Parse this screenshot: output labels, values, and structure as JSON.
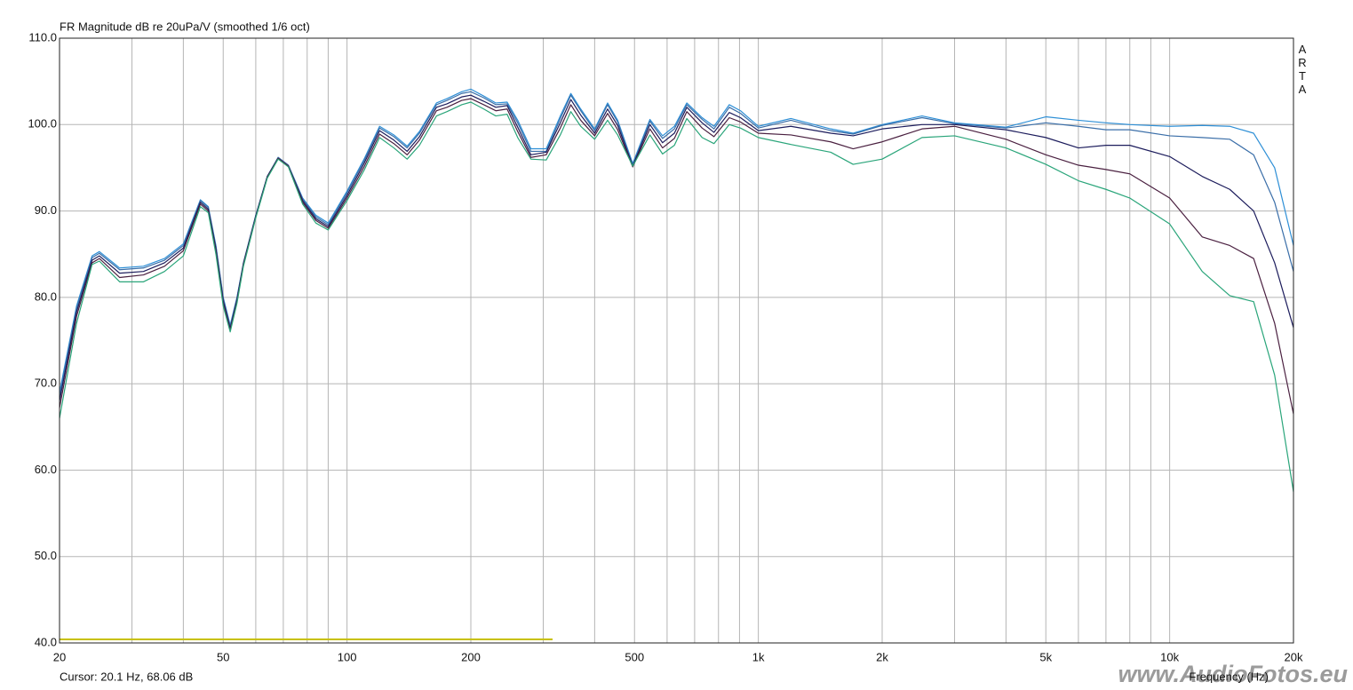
{
  "chart_data": {
    "type": "line",
    "title": "FR Magnitude dB re 20uPa/V (smoothed 1/6 oct)",
    "x_label": "Frequency (Hz)",
    "side_label": "ARTA",
    "cursor_text": "Cursor: 20.1 Hz, 68.06 dB",
    "watermark": "www.AudioFotos.eu",
    "xscale": "log",
    "grid": true,
    "xlim": [
      20,
      20000
    ],
    "ylim": [
      40,
      110
    ],
    "xticks": [
      20,
      50,
      100,
      200,
      500,
      {
        "value": 1000,
        "label": "1k"
      },
      {
        "value": 2000,
        "label": "2k"
      },
      {
        "value": 5000,
        "label": "5k"
      },
      {
        "value": 10000,
        "label": "10k"
      },
      {
        "value": 20000,
        "label": "20k"
      }
    ],
    "x_minor_grid": [
      30,
      40,
      60,
      70,
      80,
      90,
      300,
      400,
      600,
      700,
      800,
      900,
      3000,
      4000,
      6000,
      7000,
      8000,
      9000
    ],
    "yticks": [
      {
        "value": 40,
        "label": "40.0"
      },
      {
        "value": 50,
        "label": "50.0"
      },
      {
        "value": 60,
        "label": "60.0"
      },
      {
        "value": 70,
        "label": "70.0"
      },
      {
        "value": 80,
        "label": "80.0"
      },
      {
        "value": 90,
        "label": "90.0"
      },
      {
        "value": 100,
        "label": "100.0"
      },
      {
        "value": 110,
        "label": "110.0"
      }
    ],
    "x": [
      20,
      22,
      24,
      25,
      28,
      32,
      36,
      40,
      44,
      46,
      48,
      50,
      52,
      54,
      56,
      60,
      64,
      68,
      72,
      78,
      84,
      90,
      100,
      110,
      120,
      130,
      140,
      150,
      165,
      175,
      190,
      200,
      215,
      230,
      245,
      260,
      280,
      305,
      330,
      350,
      370,
      400,
      430,
      455,
      495,
      545,
      585,
      625,
      670,
      730,
      780,
      850,
      905,
      1000,
      1200,
      1500,
      1700,
      2000,
      2500,
      3000,
      4000,
      5000,
      6000,
      7000,
      8000,
      10000,
      12000,
      14000,
      16000,
      18000,
      20000
    ],
    "series": [
      {
        "color": "#2e8fd6",
        "values": [
          69,
          79,
          84.8,
          85.3,
          83.4,
          83.6,
          84.5,
          86.2,
          91.3,
          90.5,
          86,
          80,
          76.8,
          80,
          84,
          89.5,
          94,
          96.2,
          95.3,
          91.5,
          89.5,
          88.6,
          92.3,
          96,
          99.8,
          98.8,
          97.5,
          99.2,
          102.5,
          103,
          103.8,
          104.1,
          103.3,
          102.5,
          102.6,
          100.5,
          97.2,
          97.2,
          101,
          103.6,
          101.8,
          99.5,
          102.5,
          100.5,
          95.5,
          100.6,
          98.7,
          99.8,
          102.5,
          100.8,
          99.8,
          102.3,
          101.6,
          99.8,
          100.7,
          99.5,
          99,
          100,
          101,
          100.2,
          99.7,
          100.9,
          100.5,
          100.2,
          100,
          99.8,
          99.9,
          99.8,
          99,
          95,
          86
        ]
      },
      {
        "color": "#3a6ea8",
        "values": [
          68.5,
          78.7,
          84.6,
          85.1,
          83.2,
          83.4,
          84.3,
          86,
          91.2,
          90.4,
          85.9,
          79.9,
          76.6,
          79.9,
          84,
          89.5,
          94,
          96.2,
          95.3,
          91.4,
          89.3,
          88.4,
          92.1,
          95.8,
          99.6,
          98.6,
          97.3,
          99,
          102.3,
          102.8,
          103.6,
          103.8,
          103.1,
          102.3,
          102.4,
          100.2,
          96.9,
          96.9,
          100.7,
          103.4,
          101.6,
          99.3,
          102.3,
          100.3,
          95.3,
          100.4,
          98.4,
          99.5,
          102.3,
          100.6,
          99.5,
          102,
          101.3,
          99.6,
          100.5,
          99.3,
          98.9,
          99.9,
          100.8,
          100.1,
          99.6,
          100.2,
          99.8,
          99.4,
          99.4,
          98.7,
          98.5,
          98.3,
          96.5,
          91,
          83
        ]
      },
      {
        "color": "#1c1c5c",
        "values": [
          68,
          78.3,
          84.3,
          84.8,
          82.8,
          83,
          84,
          85.7,
          91,
          90.2,
          85.6,
          79.6,
          76.4,
          79.7,
          83.9,
          89.4,
          94,
          96.1,
          95.2,
          91.2,
          89.1,
          88.2,
          91.8,
          95.5,
          99.3,
          98.2,
          96.9,
          98.6,
          102,
          102.4,
          103.2,
          103.4,
          102.7,
          102,
          102.2,
          99.7,
          96.5,
          96.8,
          100.2,
          102.9,
          101.1,
          99,
          101.8,
          99.9,
          95.2,
          100,
          97.9,
          99,
          102,
          100.2,
          99.1,
          101.4,
          100.8,
          99.3,
          99.8,
          99,
          98.7,
          99.5,
          100,
          100,
          99.4,
          98.5,
          97.3,
          97.6,
          97.6,
          96.3,
          94,
          92.5,
          90,
          84,
          76.5
        ]
      },
      {
        "color": "#4a2040",
        "values": [
          67.2,
          77.8,
          84,
          84.5,
          82.3,
          82.6,
          83.6,
          85.4,
          90.8,
          90,
          85.3,
          79.3,
          76.2,
          79.5,
          83.8,
          89.3,
          93.9,
          96.1,
          95.2,
          91,
          88.9,
          88,
          91.5,
          95.1,
          98.9,
          97.8,
          96.5,
          98.2,
          101.6,
          102,
          102.8,
          103,
          102.3,
          101.6,
          101.8,
          99.2,
          96.2,
          96.5,
          99.6,
          102.3,
          100.5,
          98.7,
          101.3,
          99.4,
          95.1,
          99.5,
          97.3,
          98.4,
          101.5,
          99.6,
          98.6,
          100.8,
          100.3,
          99,
          98.8,
          98,
          97.2,
          98,
          99.5,
          99.8,
          98.3,
          96.5,
          95.3,
          94.8,
          94.3,
          91.5,
          87,
          86,
          84.5,
          77,
          66.5
        ]
      },
      {
        "color": "#2aa57a",
        "values": [
          66,
          77,
          83.8,
          84.2,
          81.8,
          81.8,
          83,
          84.8,
          90.5,
          89.8,
          85,
          79,
          76,
          79.3,
          83.6,
          89.2,
          93.8,
          96,
          95.1,
          90.8,
          88.6,
          87.8,
          91.2,
          94.7,
          98.5,
          97.3,
          96,
          97.6,
          101,
          101.5,
          102.3,
          102.6,
          101.8,
          101,
          101.2,
          98.5,
          96,
          95.9,
          98.8,
          101.5,
          99.8,
          98.3,
          100.5,
          98.8,
          95.2,
          98.8,
          96.6,
          97.6,
          100.7,
          98.5,
          97.8,
          100,
          99.6,
          98.5,
          97.7,
          96.8,
          95.4,
          96,
          98.5,
          98.7,
          97.3,
          95.4,
          93.5,
          92.5,
          91.5,
          88.5,
          83,
          80.2,
          79.5,
          71,
          57.5
        ]
      }
    ]
  }
}
